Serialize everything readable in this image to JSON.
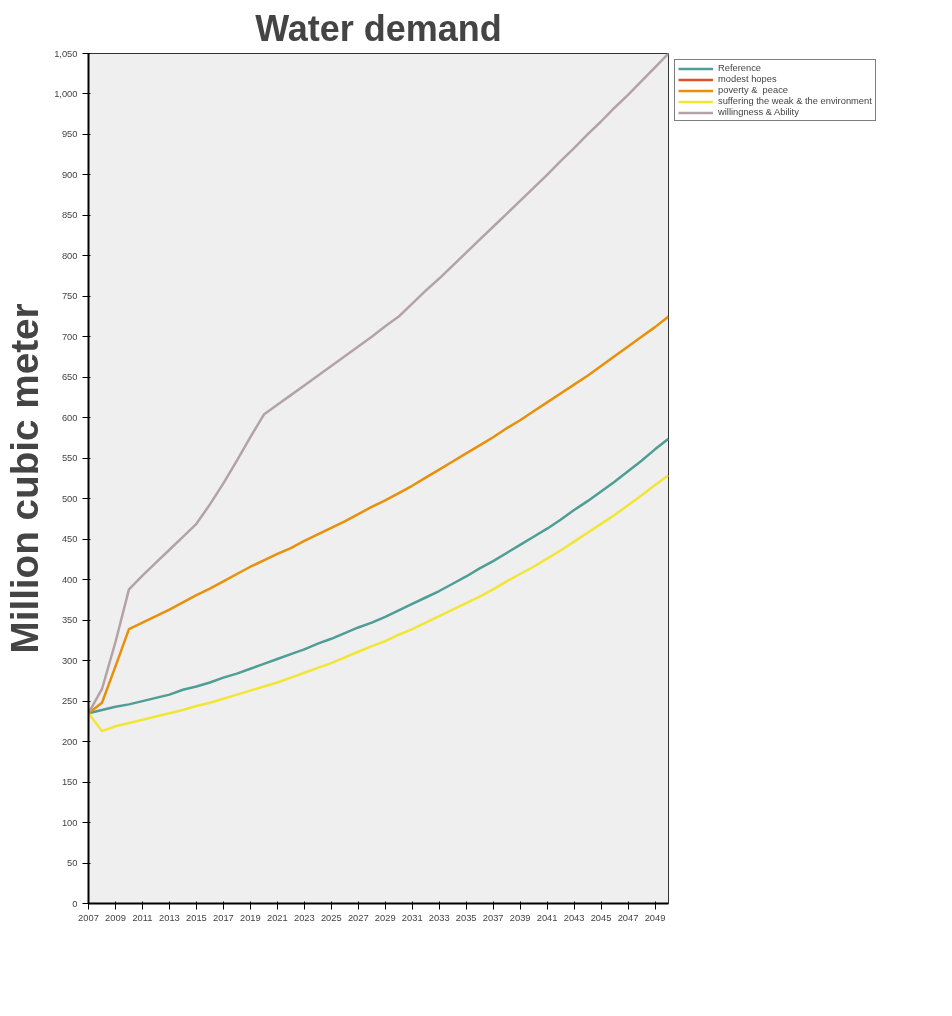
{
  "chart_data": {
    "type": "line",
    "title": "Water demand",
    "ylabel": "Million cubic meter",
    "x": [
      2007,
      2008,
      2009,
      2010,
      2011,
      2012,
      2013,
      2014,
      2015,
      2016,
      2017,
      2018,
      2019,
      2020,
      2021,
      2022,
      2023,
      2024,
      2025,
      2026,
      2027,
      2028,
      2029,
      2030,
      2031,
      2032,
      2033,
      2034,
      2035,
      2036,
      2037,
      2038,
      2039,
      2040,
      2041,
      2042,
      2043,
      2044,
      2045,
      2046,
      2047,
      2048,
      2049,
      2050
    ],
    "series": [
      {
        "name": "Reference",
        "color": "#4f9e96",
        "values": [
          235,
          239,
          243,
          246,
          250,
          254,
          258,
          264,
          268,
          273,
          279,
          284,
          290,
          296,
          302,
          308,
          314,
          321,
          327,
          334,
          341,
          347,
          354,
          362,
          370,
          378,
          386,
          395,
          404,
          414,
          423,
          433,
          443,
          453,
          463,
          474,
          486,
          497,
          509,
          521,
          534,
          547,
          561,
          574
        ]
      },
      {
        "name": "modest hopes",
        "color": "#d9532b",
        "values": [
          null,
          null,
          null,
          null,
          null,
          null,
          null,
          null,
          null,
          null,
          null,
          null,
          null,
          null,
          null,
          null,
          null,
          null,
          null,
          null,
          null,
          null,
          null,
          null,
          null,
          null,
          null,
          null,
          null,
          null,
          null,
          null,
          null,
          null,
          null,
          null,
          null,
          null,
          null,
          null,
          null,
          null,
          null,
          null
        ]
      },
      {
        "name": "poverty &  peace",
        "color": "#e8900a",
        "values": [
          235,
          248,
          293,
          339,
          347,
          355,
          363,
          372,
          381,
          389,
          398,
          407,
          416,
          424,
          432,
          439,
          448,
          456,
          464,
          472,
          481,
          490,
          498,
          507,
          516,
          526,
          536,
          546,
          556,
          566,
          576,
          587,
          597,
          608,
          619,
          630,
          641,
          652,
          664,
          676,
          688,
          700,
          712,
          725
        ]
      },
      {
        "name": "suffering the weak & the environment",
        "color": "#f2e635",
        "values": [
          235,
          213,
          219,
          223,
          227,
          231,
          235,
          239,
          244,
          248,
          253,
          258,
          263,
          268,
          273,
          279,
          285,
          291,
          297,
          304,
          311,
          318,
          324,
          332,
          339,
          347,
          355,
          363,
          371,
          379,
          388,
          398,
          407,
          416,
          426,
          436,
          447,
          458,
          469,
          480,
          492,
          504,
          517,
          529
        ]
      },
      {
        "name": "willingness & Ability",
        "color": "#b3a3a6",
        "values": [
          235,
          265,
          323,
          388,
          405,
          421,
          437,
          453,
          469,
          493,
          519,
          547,
          576,
          604,
          616,
          628,
          640,
          652,
          664,
          676,
          688,
          700,
          713,
          725,
          741,
          757,
          772,
          788,
          804,
          820,
          836,
          852,
          868,
          884,
          900,
          917,
          933,
          950,
          966,
          983,
          999,
          1016,
          1033,
          1050
        ]
      }
    ],
    "xlim": [
      2007,
      2050
    ],
    "xticks": [
      2007,
      2009,
      2011,
      2013,
      2015,
      2017,
      2019,
      2021,
      2023,
      2025,
      2027,
      2029,
      2031,
      2033,
      2035,
      2037,
      2039,
      2041,
      2043,
      2045,
      2047,
      2049
    ],
    "ylim": [
      0,
      1050
    ],
    "yticks": [
      0,
      50,
      100,
      150,
      200,
      250,
      300,
      350,
      400,
      450,
      500,
      550,
      600,
      650,
      700,
      750,
      800,
      850,
      900,
      950,
      {
        "value": 1000,
        "label": "1,000"
      },
      {
        "value": 1050,
        "label": "1,050"
      }
    ],
    "grid": false,
    "legend": "top right",
    "marker": "none",
    "line_style": "solid"
  }
}
